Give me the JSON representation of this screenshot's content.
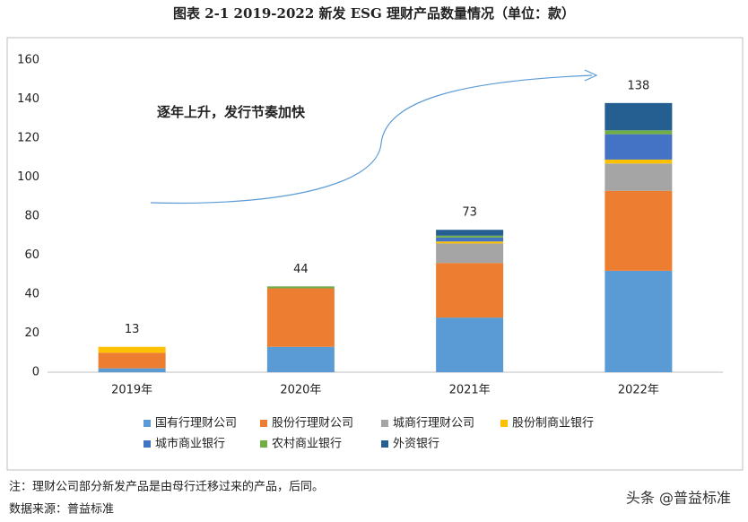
{
  "chart_data": {
    "type": "stacked_bar",
    "title": "图表 2-1   2019-2022 新发 ESG 理财产品数量情况（单位：款）",
    "annotation": "逐年上升，发行节奏加快",
    "categories": [
      "2019年",
      "2020年",
      "2021年",
      "2022年"
    ],
    "series": [
      {
        "name": "国有行理财公司",
        "color": "#5b9bd5",
        "values": [
          2,
          13,
          28,
          52
        ]
      },
      {
        "name": "股份行理财公司",
        "color": "#ed7d31",
        "values": [
          8,
          30,
          28,
          41
        ]
      },
      {
        "name": "城商行理财公司",
        "color": "#a5a5a5",
        "values": [
          0,
          0,
          10,
          14
        ]
      },
      {
        "name": "股份制商业银行",
        "color": "#ffc000",
        "values": [
          3,
          0,
          1,
          2
        ]
      },
      {
        "name": "城市商业银行",
        "color": "#4472c4",
        "values": [
          0,
          0,
          2,
          13
        ]
      },
      {
        "name": "农村商业银行",
        "color": "#70ad47",
        "values": [
          0,
          1,
          1,
          2
        ]
      },
      {
        "name": "外资银行",
        "color": "#255e91",
        "values": [
          0,
          0,
          3,
          14
        ]
      }
    ],
    "totals": [
      13,
      44,
      73,
      138
    ],
    "ylim": [
      0,
      160
    ],
    "yticks": [
      0,
      20,
      40,
      60,
      80,
      100,
      120,
      140,
      160
    ],
    "note": "注：理财公司部分新发产品是由母行迁移过来的产品，后同。",
    "source": "数据来源：普益标准",
    "watermark": "头条 @普益标准"
  }
}
